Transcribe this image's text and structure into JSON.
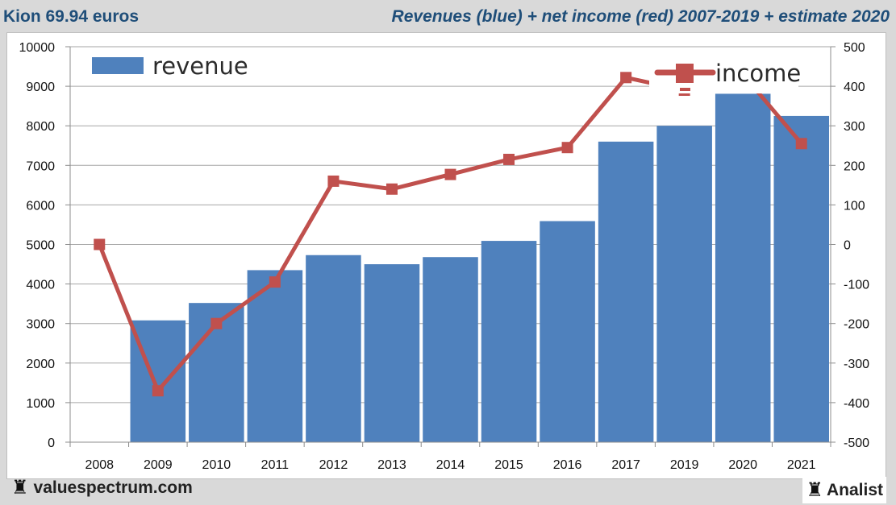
{
  "header": {
    "title_left": "Kion 69.94 euros",
    "title_right": "Revenues (blue) + net income (red) 2007-2019 + estimate 2020"
  },
  "footer": {
    "brand_left": "valuespectrum.com",
    "brand_right": "Analist",
    "brand_icon": "rook-icon"
  },
  "colors": {
    "revenue": "#4f81bd",
    "income": "#c0504d",
    "title": "#1f4e79",
    "background": "#d9d9d9",
    "grid": "#a6a6a6"
  },
  "chart_data": {
    "type": "bar+line",
    "title": "Revenues (blue) + net income (red) 2007-2019 + estimate 2020",
    "categories": [
      "2008",
      "2009",
      "2010",
      "2011",
      "2012",
      "2013",
      "2014",
      "2015",
      "2016",
      "2017",
      "2019",
      "2020",
      "2021"
    ],
    "series": [
      {
        "name": "revenue",
        "type": "bar",
        "axis": "left",
        "values": [
          null,
          3080,
          3520,
          4350,
          4730,
          4500,
          4680,
          5090,
          5590,
          7600,
          8000,
          8810,
          8250
        ]
      },
      {
        "name": "income",
        "type": "line",
        "axis": "right",
        "values": [
          0,
          -370,
          -200,
          -95,
          160,
          140,
          177,
          215,
          245,
          422,
          390,
          430,
          255
        ]
      }
    ],
    "left_axis": {
      "range": [
        0,
        10000
      ],
      "ticks": [
        "0",
        "1000",
        "2000",
        "3000",
        "4000",
        "5000",
        "6000",
        "7000",
        "8000",
        "9000",
        "10000"
      ]
    },
    "right_axis": {
      "range": [
        -500,
        500
      ],
      "ticks": [
        "-500",
        "-400",
        "-300",
        "-200",
        "-100",
        "0",
        "100",
        "200",
        "300",
        "400",
        "500"
      ]
    },
    "grid": true,
    "legend": [
      {
        "label": "revenue",
        "position": "top-left"
      },
      {
        "label": "income",
        "position": "top-right"
      }
    ]
  }
}
